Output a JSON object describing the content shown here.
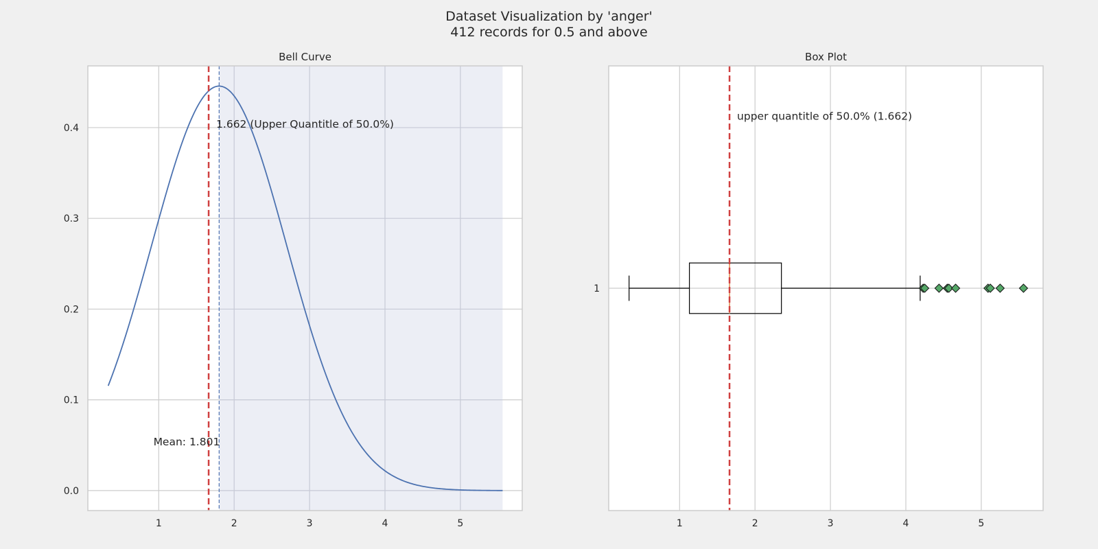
{
  "figure": {
    "title_line1": "Dataset Visualization by 'anger'",
    "title_line2": "412 records for 0.5 and above"
  },
  "colors": {
    "figure_bg": "#f0f0f0",
    "axes_bg": "#ffffff",
    "grid": "#cccccc",
    "shade": "#eaecf4",
    "curve": "#4c72b0",
    "red_line": "#d04040",
    "mean_line": "#4c72b0",
    "flier": "#55a868",
    "box": "#000000",
    "median": "#e08b4a"
  },
  "chart_data": [
    {
      "type": "line",
      "title": "Bell Curve",
      "xlim": [
        0.06,
        5.82
      ],
      "ylim": [
        -0.022,
        0.468
      ],
      "xticks": [
        1,
        2,
        3,
        4,
        5
      ],
      "yticks": [
        0.0,
        0.1,
        0.2,
        0.3,
        0.4
      ],
      "ytick_labels": [
        "0.0",
        "0.1",
        "0.2",
        "0.3",
        "0.4"
      ],
      "grid": true,
      "curve": {
        "mean": 1.801,
        "std": 0.895,
        "x_start": 0.33,
        "x_end": 5.56
      },
      "shaded_region": {
        "x_start": 1.801,
        "x_end": 5.56
      },
      "quantile_line": {
        "x": 1.662,
        "label": "1.662 (Upper Quantitle of 50.0%)",
        "label_y": 0.4
      },
      "mean_line": {
        "x": 1.801,
        "label": "Mean: 1.801",
        "label_y": 0.05
      }
    },
    {
      "type": "box",
      "title": "Box Plot",
      "xlim": [
        0.06,
        5.82
      ],
      "ylim": [
        0.34,
        1.66
      ],
      "xticks": [
        1,
        2,
        3,
        4,
        5
      ],
      "ytick_labels": [
        "1"
      ],
      "grid": true,
      "box": {
        "whisker_low": 0.33,
        "q1": 1.13,
        "median": 1.662,
        "q3": 2.35,
        "whisker_high": 4.19,
        "fliers": [
          4.23,
          4.25,
          4.44,
          4.55,
          4.57,
          4.66,
          5.09,
          5.12,
          5.25,
          5.56
        ]
      },
      "quantile_line": {
        "x": 1.662,
        "label": "upper quantitle of 50.0% (1.662)"
      }
    }
  ]
}
